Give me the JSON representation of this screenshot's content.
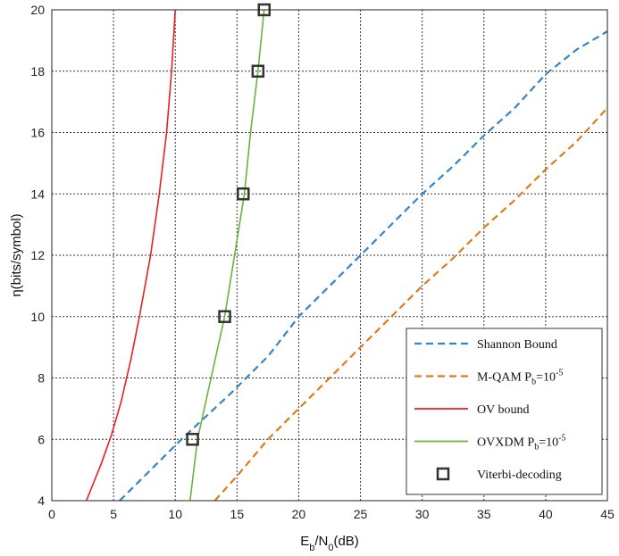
{
  "chart_data": {
    "type": "line",
    "xlabel": "E_b/N_0(dB)",
    "ylabel": "η(bits/symbol)",
    "xlim": [
      0,
      45
    ],
    "ylim": [
      4,
      20
    ],
    "xticks": [
      0,
      5,
      10,
      15,
      20,
      25,
      30,
      35,
      40,
      45
    ],
    "yticks": [
      4,
      6,
      8,
      10,
      12,
      14,
      16,
      18,
      20
    ],
    "grid": true,
    "legend_position": "bottom-right",
    "series": [
      {
        "name": "Shannon Bound",
        "style": "dashed",
        "color": "#2f86c8",
        "points": [
          [
            5.5,
            4
          ],
          [
            8,
            5
          ],
          [
            10.5,
            6
          ],
          [
            14.5,
            7.5
          ],
          [
            17.5,
            8.7
          ],
          [
            20,
            10
          ],
          [
            22.5,
            11
          ],
          [
            25,
            12
          ],
          [
            27.5,
            13
          ],
          [
            30,
            14
          ],
          [
            32.5,
            14.9
          ],
          [
            35,
            15.9
          ],
          [
            37.5,
            16.8
          ],
          [
            40,
            17.9
          ],
          [
            42.5,
            18.7
          ],
          [
            45,
            19.3
          ]
        ]
      },
      {
        "name": "M-QAM P_b=10^-5",
        "style": "dashed",
        "color": "#e07b19",
        "points": [
          [
            13.2,
            4
          ],
          [
            15,
            4.8
          ],
          [
            17.5,
            6
          ],
          [
            20,
            7
          ],
          [
            22.5,
            8
          ],
          [
            25,
            9
          ],
          [
            27.5,
            10
          ],
          [
            30,
            11
          ],
          [
            32.5,
            11.9
          ],
          [
            35,
            12.9
          ],
          [
            37.5,
            13.8
          ],
          [
            40,
            14.8
          ],
          [
            42.5,
            15.7
          ],
          [
            45,
            16.8
          ]
        ]
      },
      {
        "name": "OV bound",
        "style": "solid",
        "color": "#e8211f",
        "points": [
          [
            2.8,
            4
          ],
          [
            4,
            5.2
          ],
          [
            4.8,
            6.1
          ],
          [
            5.6,
            7.2
          ],
          [
            6.4,
            8.6
          ],
          [
            7.1,
            10
          ],
          [
            8,
            12
          ],
          [
            8.7,
            14
          ],
          [
            9.3,
            16
          ],
          [
            9.7,
            18
          ],
          [
            10,
            20
          ]
        ]
      },
      {
        "name": "OVXDM P_b=10^-5",
        "style": "solid",
        "color": "#6ab43c",
        "points": [
          [
            11.2,
            4
          ],
          [
            11.8,
            6
          ],
          [
            12.9,
            8
          ],
          [
            14,
            10
          ],
          [
            14.8,
            12
          ],
          [
            15.6,
            14
          ],
          [
            16.1,
            16
          ],
          [
            16.7,
            18
          ],
          [
            17.2,
            20
          ]
        ]
      },
      {
        "name": "Viterbi-decoding",
        "style": "marker-square",
        "color": "#333333",
        "points": [
          [
            11.4,
            6
          ],
          [
            14,
            10
          ],
          [
            15.5,
            14
          ],
          [
            16.7,
            18
          ],
          [
            17.2,
            20
          ]
        ]
      }
    ],
    "legend": [
      {
        "label": "Shannon Bound"
      },
      {
        "label": "M-QAM P",
        "sub": "b",
        "eq": "=10",
        "sup": "-5"
      },
      {
        "label": "OV bound"
      },
      {
        "label": "OVXDM P",
        "sub": "b",
        "eq": "=10",
        "sup": "-5"
      },
      {
        "label": "Viterbi-decoding"
      }
    ]
  }
}
